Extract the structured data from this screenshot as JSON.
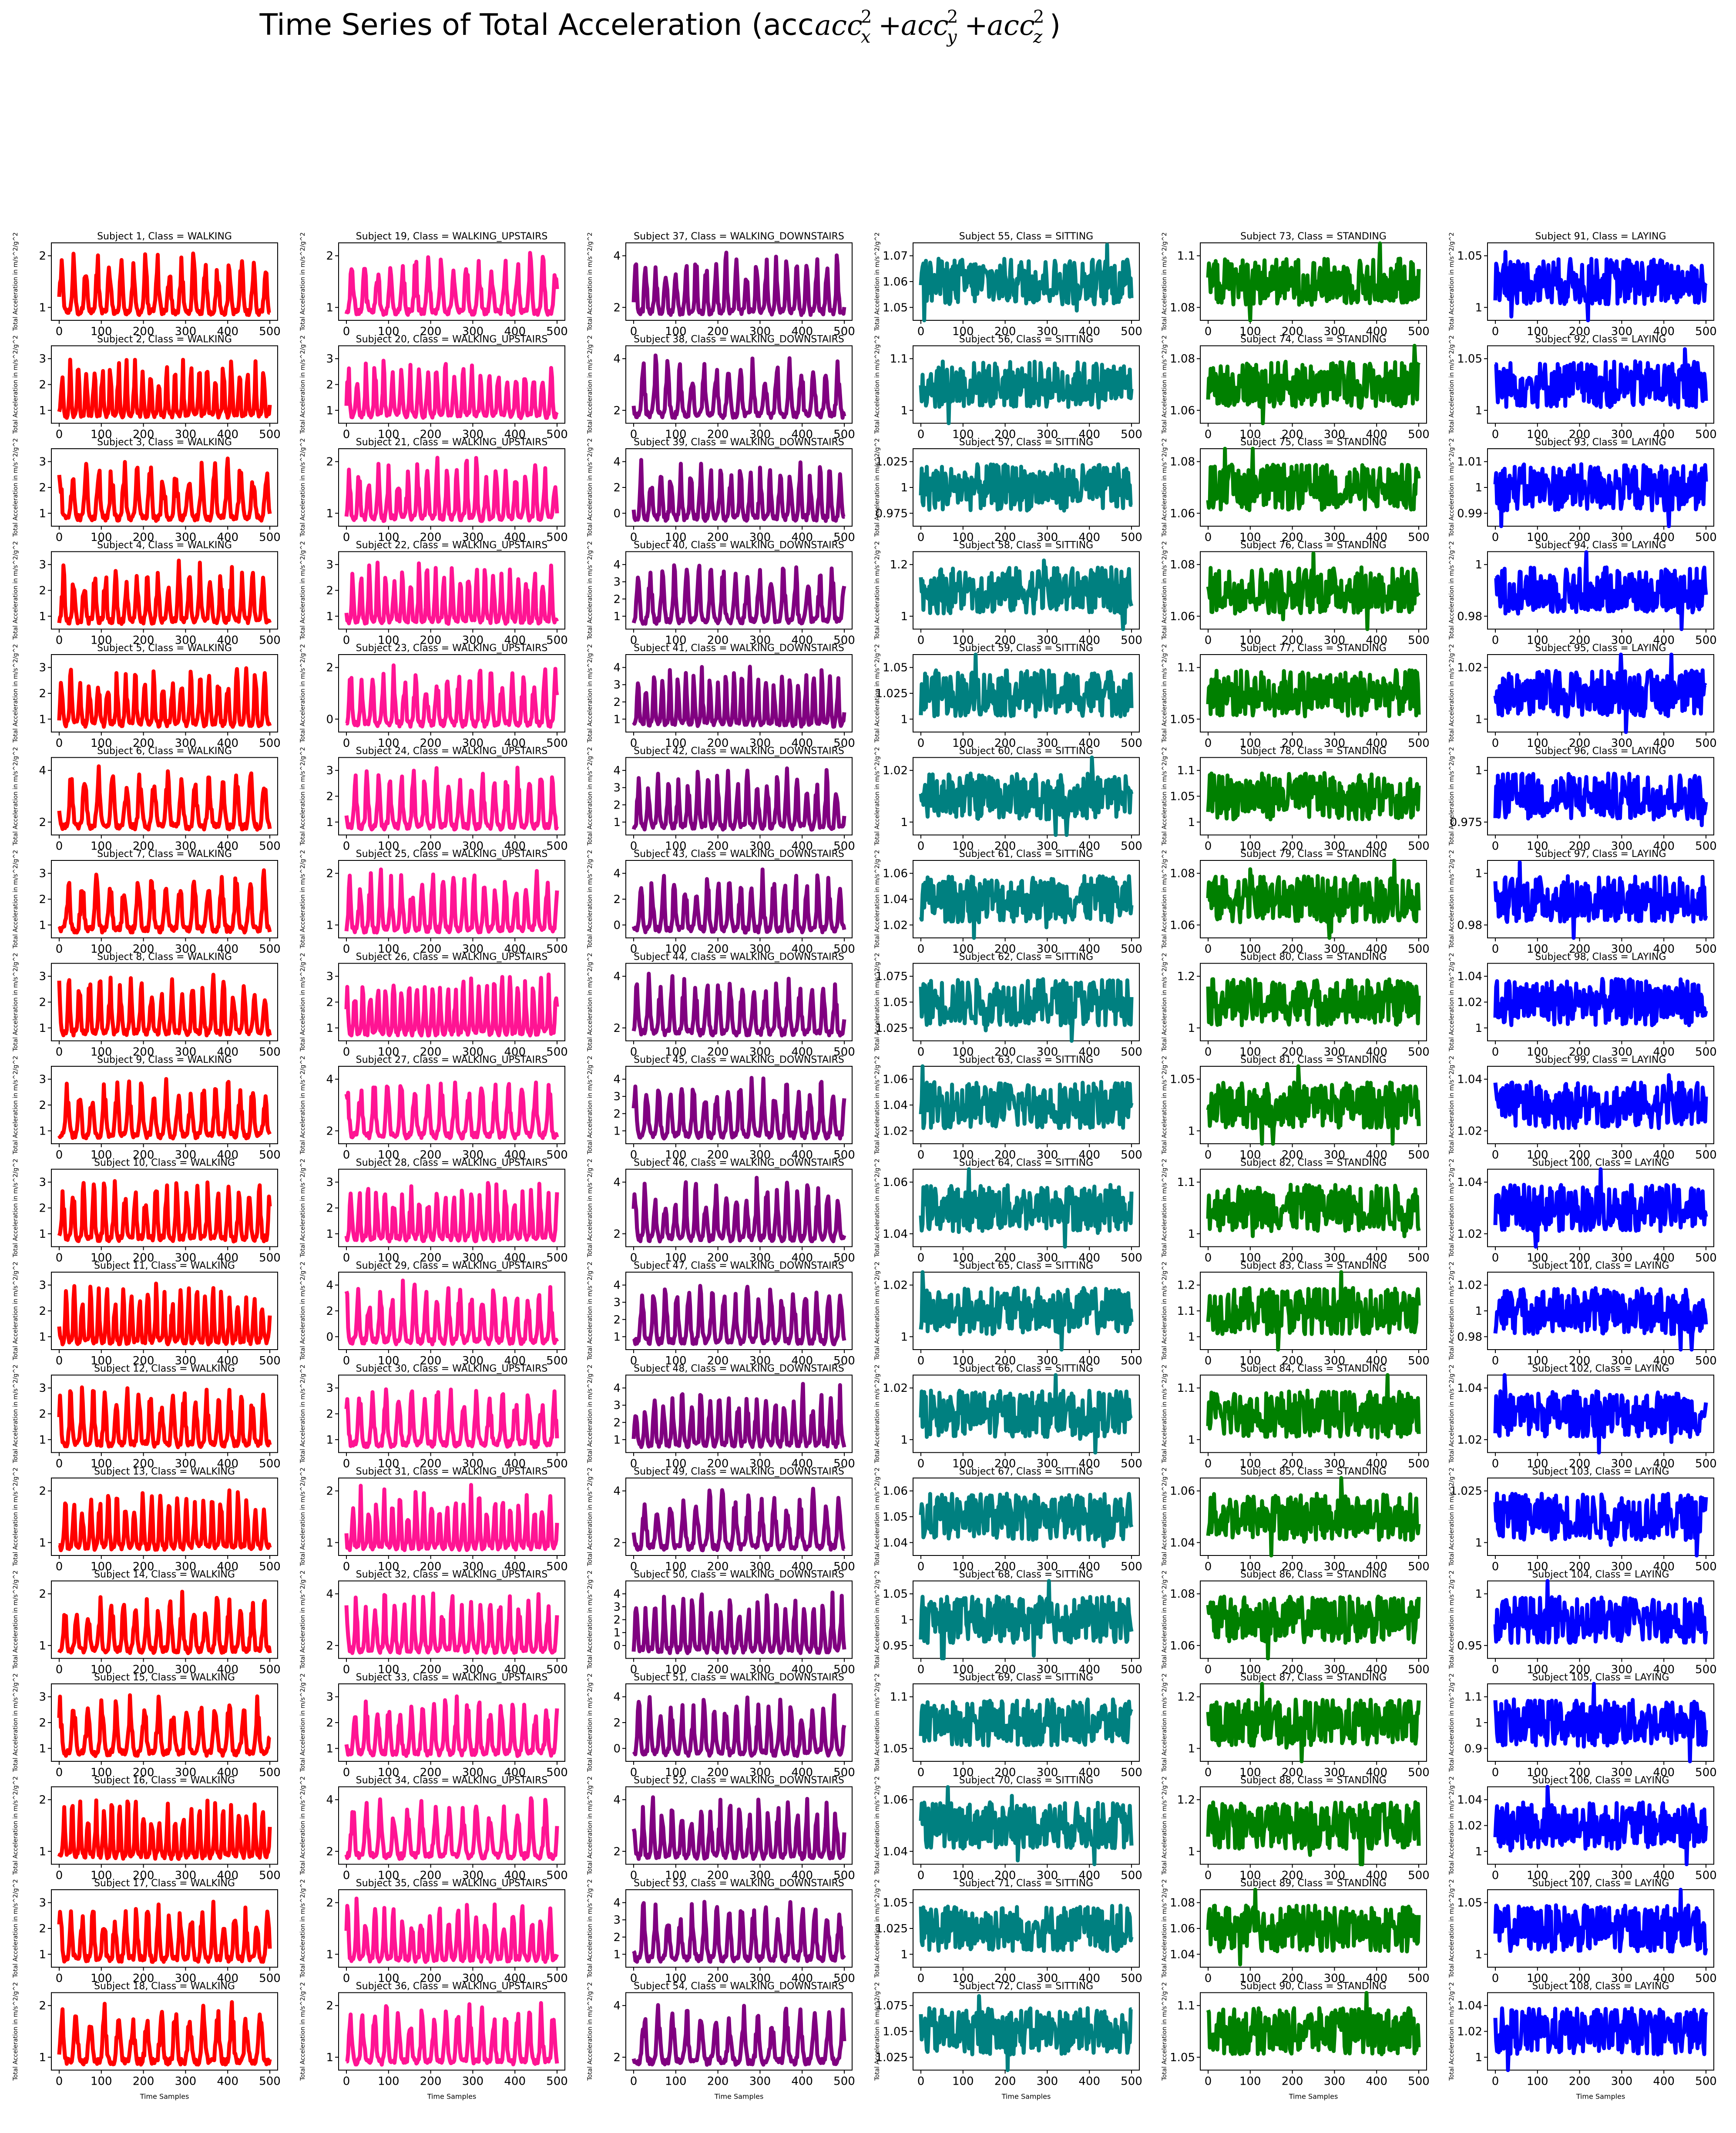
{
  "figure": {
    "title": "Time Series of Total Acceleration (acc_x^2 + acc_y^2 + acc_z^2)",
    "title_display": "Time Series of Total Acceleration (acc",
    "xlabel": "Time Samples",
    "ylabel": "Total Acceleration in  m/s^2/g^2"
  },
  "classes": [
    {
      "name": "WALKING",
      "color": "#ff0000",
      "subjects": [
        1,
        2,
        3,
        4,
        5,
        6,
        7,
        8,
        9,
        10,
        11,
        12,
        13,
        14,
        15,
        16,
        17,
        18
      ],
      "yticks": [
        [
          1,
          2
        ],
        [
          1,
          2,
          3
        ],
        [
          1,
          2,
          3
        ],
        [
          1,
          2,
          3
        ],
        [
          1,
          2,
          3
        ],
        [
          2,
          4
        ],
        [
          1,
          2,
          3
        ],
        [
          1,
          2,
          3
        ],
        [
          1,
          2,
          3
        ],
        [
          1,
          2,
          3
        ],
        [
          1,
          2,
          3
        ],
        [
          1,
          2,
          3
        ],
        [
          1,
          2
        ],
        [
          1,
          2
        ],
        [
          1,
          2,
          3
        ],
        [
          1,
          2
        ],
        [
          1,
          2,
          3
        ],
        [
          1,
          2
        ]
      ]
    },
    {
      "name": "WALKING_UPSTAIRS",
      "color": "#ff1493",
      "subjects": [
        19,
        20,
        21,
        22,
        23,
        24,
        25,
        26,
        27,
        28,
        29,
        30,
        31,
        32,
        33,
        34,
        35,
        36
      ],
      "yticks": [
        [
          1,
          2
        ],
        [
          1,
          2,
          3
        ],
        [
          1,
          2
        ],
        [
          1,
          2,
          3
        ],
        [
          0,
          2
        ],
        [
          1,
          2,
          3
        ],
        [
          1,
          2
        ],
        [
          1,
          2,
          3
        ],
        [
          2,
          4
        ],
        [
          1,
          2,
          3
        ],
        [
          0,
          2,
          4
        ],
        [
          1,
          2,
          3
        ],
        [
          1,
          2
        ],
        [
          2,
          4
        ],
        [
          1,
          2,
          3
        ],
        [
          2,
          4
        ],
        [
          1,
          2
        ],
        [
          1,
          2
        ]
      ]
    },
    {
      "name": "WALKING_DOWNSTAIRS",
      "color": "#800080",
      "subjects": [
        37,
        38,
        39,
        40,
        41,
        42,
        43,
        44,
        45,
        46,
        47,
        48,
        49,
        50,
        51,
        52,
        53,
        54
      ],
      "yticks": [
        [
          2,
          4
        ],
        [
          2,
          4
        ],
        [
          0,
          2,
          4
        ],
        [
          1,
          2,
          3,
          4
        ],
        [
          1,
          2,
          3,
          4
        ],
        [
          1,
          2,
          3,
          4
        ],
        [
          0,
          2,
          4
        ],
        [
          2,
          4
        ],
        [
          1,
          2,
          3,
          4
        ],
        [
          2,
          4
        ],
        [
          1,
          2,
          3,
          4
        ],
        [
          1,
          2,
          3,
          4
        ],
        [
          2,
          4
        ],
        [
          0,
          1,
          2,
          3,
          4
        ],
        [
          0,
          2,
          4
        ],
        [
          2,
          4
        ],
        [
          1,
          2,
          3,
          4
        ],
        [
          2,
          4
        ]
      ]
    },
    {
      "name": "SITTING",
      "color": "#008080",
      "subjects": [
        55,
        56,
        57,
        58,
        59,
        60,
        61,
        62,
        63,
        64,
        65,
        66,
        67,
        68,
        69,
        70,
        71,
        72
      ],
      "yticks": [
        [
          1.05,
          1.06,
          1.07
        ],
        [
          1.0,
          1.1
        ],
        [
          0.975,
          1.0,
          1.025
        ],
        [
          1.0,
          1.2
        ],
        [
          1.0,
          1.025,
          1.05
        ],
        [
          1.0,
          1.02
        ],
        [
          1.02,
          1.04,
          1.06
        ],
        [
          1.025,
          1.05,
          1.075
        ],
        [
          1.02,
          1.04,
          1.06
        ],
        [
          1.04,
          1.06
        ],
        [
          1.0,
          1.02
        ],
        [
          1.0,
          1.02
        ],
        [
          1.04,
          1.05,
          1.06
        ],
        [
          0.95,
          1.0,
          1.05
        ],
        [
          1.05,
          1.1
        ],
        [
          1.04,
          1.06
        ],
        [
          1.0,
          1.025,
          1.05
        ],
        [
          1.025,
          1.05,
          1.075
        ]
      ]
    },
    {
      "name": "STANDING",
      "color": "#008000",
      "subjects": [
        73,
        74,
        75,
        76,
        77,
        78,
        79,
        80,
        81,
        82,
        83,
        84,
        85,
        86,
        87,
        88,
        89,
        90
      ],
      "yticks": [
        [
          1.08,
          1.1
        ],
        [
          1.06,
          1.08
        ],
        [
          1.06,
          1.08
        ],
        [
          1.06,
          1.08
        ],
        [
          1.05,
          1.1
        ],
        [
          1.0,
          1.05,
          1.1
        ],
        [
          1.06,
          1.08
        ],
        [
          1.0,
          1.2
        ],
        [
          1.0,
          1.05
        ],
        [
          1.0,
          1.1
        ],
        [
          1.0,
          1.1,
          1.2
        ],
        [
          1.0,
          1.1
        ],
        [
          1.04,
          1.06
        ],
        [
          1.06,
          1.08
        ],
        [
          1.0,
          1.2
        ],
        [
          1.0,
          1.2
        ],
        [
          1.04,
          1.06,
          1.08
        ],
        [
          1.05,
          1.1
        ]
      ]
    },
    {
      "name": "LAYING",
      "color": "#0000ff",
      "subjects": [
        91,
        92,
        93,
        94,
        95,
        96,
        97,
        98,
        99,
        100,
        101,
        102,
        103,
        104,
        105,
        106,
        107,
        108
      ],
      "yticks": [
        [
          1.0,
          1.05
        ],
        [
          1.0,
          1.05
        ],
        [
          0.99,
          1.0,
          1.01
        ],
        [
          0.98,
          1.0
        ],
        [
          1.0,
          1.02
        ],
        [
          0.975,
          1.0
        ],
        [
          0.98,
          1.0
        ],
        [
          1.0,
          1.02,
          1.04
        ],
        [
          1.02,
          1.04
        ],
        [
          1.02,
          1.04
        ],
        [
          0.98,
          1.0,
          1.02
        ],
        [
          1.02,
          1.04
        ],
        [
          1.0,
          1.025
        ],
        [
          0.95,
          1.0
        ],
        [
          0.9,
          1.0,
          1.1
        ],
        [
          1.0,
          1.02,
          1.04
        ],
        [
          1.0,
          1.05
        ],
        [
          1.0,
          1.02,
          1.04
        ]
      ]
    }
  ],
  "chart_data": {
    "type": "line",
    "title": "Time Series of Total Acceleration (acc_x^2 + acc_y^2 + acc_z^2)",
    "xlabel": "Time Samples",
    "ylabel": "Total Acceleration in  m/s^2/g^2",
    "xlim": [
      0,
      500
    ],
    "xticks": [
      0,
      100,
      200,
      300,
      400,
      500
    ],
    "layout": "18 rows x 6 columns of small multiples, one column per activity class",
    "series_note": "Each panel plots one subject's total acceleration over ~500 time samples; walking classes show periodic peaks, static classes show noisy near-constant signals.",
    "panels_by_class": {
      "WALKING": {
        "approx_range": [
          0.5,
          3.0
        ]
      },
      "WALKING_UPSTAIRS": {
        "approx_range": [
          0.5,
          3.5
        ]
      },
      "WALKING_DOWNSTAIRS": {
        "approx_range": [
          0.2,
          4.5
        ]
      },
      "SITTING": {
        "approx_range": [
          0.95,
          1.1
        ]
      },
      "STANDING": {
        "approx_range": [
          1.0,
          1.2
        ]
      },
      "LAYING": {
        "approx_range": [
          0.95,
          1.05
        ]
      }
    }
  }
}
